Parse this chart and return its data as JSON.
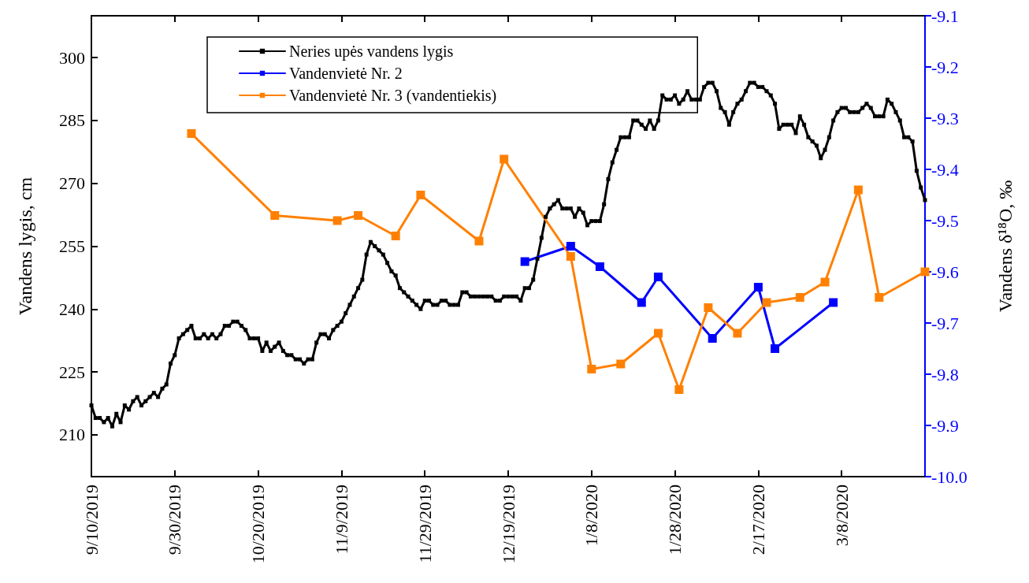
{
  "chart_data": {
    "type": "line",
    "ylabel": "Vandens lygis, cm",
    "y2label": "Vandens δ¹⁸O, ‰",
    "xlim": [
      "2019-09-10",
      "2020-03-28"
    ],
    "xticks": [
      {
        "value": "2019-09-10",
        "label": "9/10/2019"
      },
      {
        "value": "2019-09-30",
        "label": "9/30/2019"
      },
      {
        "value": "2019-10-20",
        "label": "10/20/2019"
      },
      {
        "value": "2019-11-09",
        "label": "11/9/2019"
      },
      {
        "value": "2019-11-29",
        "label": "11/29/2019"
      },
      {
        "value": "2019-12-19",
        "label": "12/19/2019"
      },
      {
        "value": "2020-01-08",
        "label": "1/8/2020"
      },
      {
        "value": "2020-01-28",
        "label": "1/28/2020"
      },
      {
        "value": "2020-02-17",
        "label": "2/17/2020"
      },
      {
        "value": "2020-03-08",
        "label": "3/8/2020"
      }
    ],
    "ylim": [
      200,
      310
    ],
    "yticks": [
      210,
      225,
      240,
      255,
      270,
      285,
      300
    ],
    "y2lim": [
      -10,
      -9.1
    ],
    "y2ticks": [
      {
        "value": -10,
        "label": "-10.0"
      },
      -9.9,
      -9.8,
      -9.7,
      -9.6,
      -9.5,
      -9.4,
      -9.3,
      -9.2,
      -9.1
    ],
    "grid": false,
    "legend": "top left",
    "marker": "square",
    "line_style": "solid",
    "series": [
      {
        "name": "Neries upės vandens lygis",
        "color": "#000000",
        "x": [
          "2019-09-10",
          "2019-09-11",
          "2019-09-12",
          "2019-09-13",
          "2019-09-14",
          "2019-09-15",
          "2019-09-16",
          "2019-09-17",
          "2019-09-18",
          "2019-09-19",
          "2019-09-20",
          "2019-09-21",
          "2019-09-22",
          "2019-09-23",
          "2019-09-24",
          "2019-09-25",
          "2019-09-26",
          "2019-09-27",
          "2019-09-28",
          "2019-09-29",
          "2019-09-30",
          "2019-10-01",
          "2019-10-02",
          "2019-10-03",
          "2019-10-04",
          "2019-10-05",
          "2019-10-06",
          "2019-10-07",
          "2019-10-08",
          "2019-10-09",
          "2019-10-10",
          "2019-10-11",
          "2019-10-12",
          "2019-10-13",
          "2019-10-14",
          "2019-10-15",
          "2019-10-16",
          "2019-10-17",
          "2019-10-18",
          "2019-10-19",
          "2019-10-20",
          "2019-10-21",
          "2019-10-22",
          "2019-10-23",
          "2019-10-24",
          "2019-10-25",
          "2019-10-26",
          "2019-10-27",
          "2019-10-28",
          "2019-10-29",
          "2019-10-30",
          "2019-10-31",
          "2019-11-01",
          "2019-11-02",
          "2019-11-03",
          "2019-11-04",
          "2019-11-05",
          "2019-11-06",
          "2019-11-07",
          "2019-11-08",
          "2019-11-09",
          "2019-11-10",
          "2019-11-11",
          "2019-11-12",
          "2019-11-13",
          "2019-11-14",
          "2019-11-15",
          "2019-11-16",
          "2019-11-17",
          "2019-11-18",
          "2019-11-19",
          "2019-11-20",
          "2019-11-21",
          "2019-11-22",
          "2019-11-23",
          "2019-11-24",
          "2019-11-25",
          "2019-11-26",
          "2019-11-27",
          "2019-11-28",
          "2019-11-29",
          "2019-11-30",
          "2019-12-01",
          "2019-12-02",
          "2019-12-03",
          "2019-12-04",
          "2019-12-05",
          "2019-12-06",
          "2019-12-07",
          "2019-12-08",
          "2019-12-09",
          "2019-12-10",
          "2019-12-11",
          "2019-12-12",
          "2019-12-13",
          "2019-12-14",
          "2019-12-15",
          "2019-12-16",
          "2019-12-17",
          "2019-12-18",
          "2019-12-19",
          "2019-12-20",
          "2019-12-21",
          "2019-12-22",
          "2019-12-23",
          "2019-12-24",
          "2019-12-25",
          "2019-12-26",
          "2019-12-27",
          "2019-12-28",
          "2019-12-29",
          "2019-12-30",
          "2019-12-31",
          "2020-01-01",
          "2020-01-02",
          "2020-01-03",
          "2020-01-04",
          "2020-01-05",
          "2020-01-06",
          "2020-01-07",
          "2020-01-08",
          "2020-01-09",
          "2020-01-10",
          "2020-01-11",
          "2020-01-12",
          "2020-01-13",
          "2020-01-14",
          "2020-01-15",
          "2020-01-16",
          "2020-01-17",
          "2020-01-18",
          "2020-01-19",
          "2020-01-20",
          "2020-01-21",
          "2020-01-22",
          "2020-01-23",
          "2020-01-24",
          "2020-01-25",
          "2020-01-26",
          "2020-01-27",
          "2020-01-28",
          "2020-01-29",
          "2020-01-30",
          "2020-01-31",
          "2020-02-01",
          "2020-02-02",
          "2020-02-03",
          "2020-02-04",
          "2020-02-05",
          "2020-02-06",
          "2020-02-07",
          "2020-02-08",
          "2020-02-09",
          "2020-02-10",
          "2020-02-11",
          "2020-02-12",
          "2020-02-13",
          "2020-02-14",
          "2020-02-15",
          "2020-02-16",
          "2020-02-17",
          "2020-02-18",
          "2020-02-19",
          "2020-02-20",
          "2020-02-21",
          "2020-02-22",
          "2020-02-23",
          "2020-02-24",
          "2020-02-25",
          "2020-02-26",
          "2020-02-27",
          "2020-02-28",
          "2020-02-29",
          "2020-03-01",
          "2020-03-02",
          "2020-03-03",
          "2020-03-04",
          "2020-03-05",
          "2020-03-06",
          "2020-03-07",
          "2020-03-08",
          "2020-03-09",
          "2020-03-10",
          "2020-03-11",
          "2020-03-12",
          "2020-03-13",
          "2020-03-14",
          "2020-03-15",
          "2020-03-16",
          "2020-03-17",
          "2020-03-18",
          "2020-03-19",
          "2020-03-20",
          "2020-03-21",
          "2020-03-22",
          "2020-03-23",
          "2020-03-24",
          "2020-03-25",
          "2020-03-26",
          "2020-03-27",
          "2020-03-28"
        ],
        "values": [
          217,
          214,
          214,
          213,
          214,
          212,
          215,
          213,
          217,
          216,
          218,
          219,
          217,
          218,
          219,
          220,
          219,
          221,
          222,
          227,
          229,
          233,
          234,
          235,
          236,
          233,
          233,
          234,
          233,
          234,
          233,
          234,
          236,
          236,
          237,
          237,
          236,
          235,
          233,
          233,
          233,
          230,
          232,
          230,
          231,
          232,
          230,
          229,
          229,
          228,
          228,
          227,
          228,
          228,
          232,
          234,
          234,
          233,
          235,
          236,
          237,
          239,
          241,
          243,
          245,
          247,
          253,
          256,
          255,
          254,
          253,
          251,
          249,
          248,
          245,
          244,
          243,
          242,
          241,
          240,
          242,
          242,
          241,
          241,
          242,
          242,
          241,
          241,
          241,
          244,
          244,
          243,
          243,
          243,
          243,
          243,
          243,
          242,
          242,
          243,
          243,
          243,
          243,
          242,
          245,
          245,
          247,
          252,
          257,
          262,
          264,
          265,
          266,
          264,
          264,
          264,
          262,
          264,
          263,
          260,
          261,
          261,
          261,
          265,
          271,
          275,
          278,
          281,
          281,
          281,
          285,
          285,
          284,
          283,
          285,
          283,
          285,
          291,
          290,
          290,
          291,
          289,
          290,
          292,
          290,
          290,
          290,
          293,
          294,
          294,
          292,
          288,
          287,
          284,
          287,
          289,
          290,
          292,
          294,
          294,
          293,
          293,
          292,
          291,
          289,
          283,
          284,
          284,
          284,
          282,
          286,
          284,
          281,
          280,
          279,
          276,
          278,
          281,
          285,
          287,
          288,
          288,
          287,
          287,
          287,
          288,
          289,
          288,
          286,
          286,
          286,
          290,
          289,
          287,
          285,
          281,
          281,
          280,
          273,
          269,
          266
        ]
      },
      {
        "name": "Vandenvietė Nr. 2",
        "color": "#0000ff",
        "axis": "y2",
        "x": [
          "2019-12-23",
          "2020-01-03",
          "2020-01-10",
          "2020-01-20",
          "2020-01-24",
          "2020-02-06",
          "2020-02-17",
          "2020-02-21",
          "2020-03-06"
        ],
        "values": [
          -9.58,
          -9.55,
          -9.59,
          -9.66,
          -9.61,
          -9.73,
          -9.63,
          -9.75,
          -9.66
        ]
      },
      {
        "name": "Vandenvietė Nr. 3 (vandentiekis)",
        "color": "#ff8000",
        "axis": "y2",
        "x": [
          "2019-10-04",
          "2019-10-24",
          "2019-11-08",
          "2019-11-13",
          "2019-11-22",
          "2019-11-28",
          "2019-12-12",
          "2019-12-18",
          "2020-01-03",
          "2020-01-08",
          "2020-01-15",
          "2020-01-24",
          "2020-01-29",
          "2020-02-05",
          "2020-02-12",
          "2020-02-19",
          "2020-02-27",
          "2020-03-04",
          "2020-03-12",
          "2020-03-17",
          "2020-03-28"
        ],
        "values": [
          -9.33,
          -9.49,
          -9.5,
          -9.49,
          -9.53,
          -9.45,
          -9.54,
          -9.38,
          -9.57,
          -9.79,
          -9.78,
          -9.72,
          -9.83,
          -9.67,
          -9.72,
          -9.66,
          -9.65,
          -9.62,
          -9.44,
          -9.65,
          -9.6
        ]
      }
    ]
  }
}
